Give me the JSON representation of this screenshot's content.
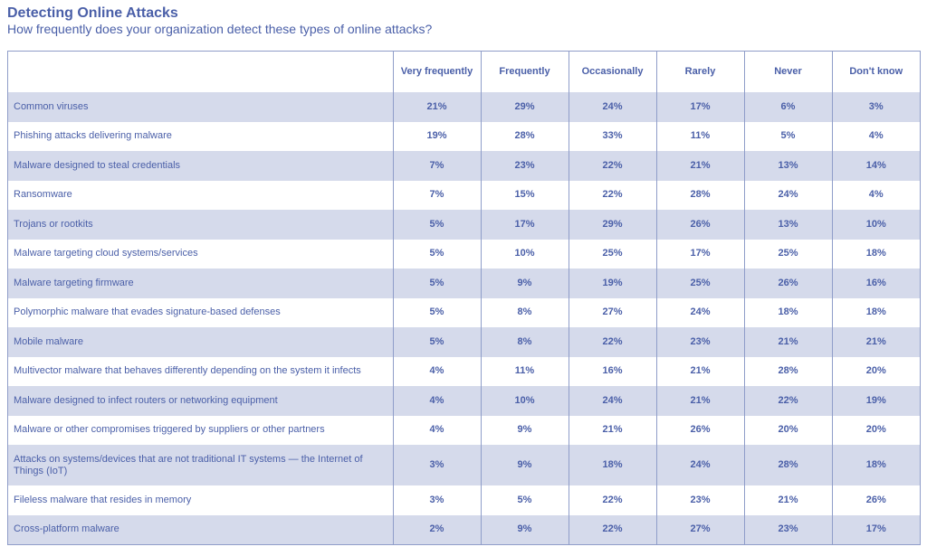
{
  "header": {
    "title": "Detecting Online Attacks",
    "subtitle": "How frequently does your organization detect these types of online attacks?"
  },
  "colors": {
    "text": "#4a5fa8",
    "band": "#d5daeb",
    "border": "#8f9dc9"
  },
  "chart_data": {
    "type": "table",
    "title": "Detecting Online Attacks",
    "subtitle": "How frequently does your organization detect these types of online attacks?",
    "columns": [
      "Very frequently",
      "Frequently",
      "Occasionally",
      "Rarely",
      "Never",
      "Don't know"
    ],
    "rows": [
      {
        "label": "Common viruses",
        "values": [
          "21%",
          "29%",
          "24%",
          "17%",
          "6%",
          "3%"
        ]
      },
      {
        "label": "Phishing attacks delivering malware",
        "values": [
          "19%",
          "28%",
          "33%",
          "11%",
          "5%",
          "4%"
        ]
      },
      {
        "label": "Malware designed to steal credentials",
        "values": [
          "7%",
          "23%",
          "22%",
          "21%",
          "13%",
          "14%"
        ]
      },
      {
        "label": "Ransomware",
        "values": [
          "7%",
          "15%",
          "22%",
          "28%",
          "24%",
          "4%"
        ]
      },
      {
        "label": "Trojans or rootkits",
        "values": [
          "5%",
          "17%",
          "29%",
          "26%",
          "13%",
          "10%"
        ]
      },
      {
        "label": "Malware targeting cloud systems/services",
        "values": [
          "5%",
          "10%",
          "25%",
          "17%",
          "25%",
          "18%"
        ]
      },
      {
        "label": "Malware targeting firmware",
        "values": [
          "5%",
          "9%",
          "19%",
          "25%",
          "26%",
          "16%"
        ]
      },
      {
        "label": "Polymorphic malware that evades signature-based defenses",
        "values": [
          "5%",
          "8%",
          "27%",
          "24%",
          "18%",
          "18%"
        ]
      },
      {
        "label": "Mobile malware",
        "values": [
          "5%",
          "8%",
          "22%",
          "23%",
          "21%",
          "21%"
        ]
      },
      {
        "label": "Multivector malware that behaves differently depending on the system it infects",
        "values": [
          "4%",
          "11%",
          "16%",
          "21%",
          "28%",
          "20%"
        ]
      },
      {
        "label": "Malware designed to infect routers or networking equipment",
        "values": [
          "4%",
          "10%",
          "24%",
          "21%",
          "22%",
          "19%"
        ]
      },
      {
        "label": "Malware or other compromises triggered by suppliers or other partners",
        "values": [
          "4%",
          "9%",
          "21%",
          "26%",
          "20%",
          "20%"
        ]
      },
      {
        "label": "Attacks on systems/devices that are not traditional IT systems — the Internet of Things (IoT)",
        "values": [
          "3%",
          "9%",
          "18%",
          "24%",
          "28%",
          "18%"
        ]
      },
      {
        "label": "Fileless malware that resides in memory",
        "values": [
          "3%",
          "5%",
          "22%",
          "23%",
          "21%",
          "26%"
        ]
      },
      {
        "label": "Cross-platform malware",
        "values": [
          "2%",
          "9%",
          "22%",
          "27%",
          "23%",
          "17%"
        ]
      }
    ]
  }
}
